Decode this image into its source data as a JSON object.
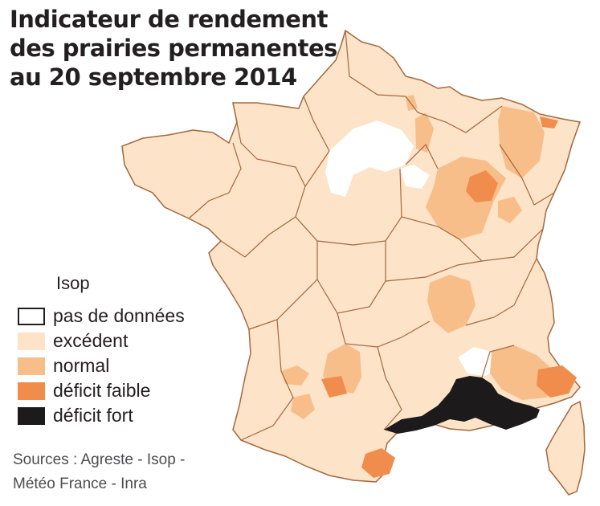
{
  "title": {
    "line1": "Indicateur de rendement",
    "line2": "des prairies permanentes",
    "line3": "au 20 septembre 2014"
  },
  "legend": {
    "title": "Isop",
    "items": [
      {
        "label": "pas de données",
        "color": "#ffffff",
        "border": "#231f20"
      },
      {
        "label": "excédent",
        "color": "#fde3c8",
        "border": "#fde3c8"
      },
      {
        "label": "normal",
        "color": "#f7be8a",
        "border": "#f7be8a"
      },
      {
        "label": "déficit faible",
        "color": "#f08d4c",
        "border": "#f08d4c"
      },
      {
        "label": "déficit fort",
        "color": "#1c1a1a",
        "border": "#1c1a1a"
      }
    ]
  },
  "sources": {
    "line1": "Sources : Agreste - Isop -",
    "line2": "Météo France - Inra"
  },
  "colors": {
    "background": "#ffffff",
    "region_border": "#a3683f",
    "excedent": "#fde3c8",
    "normal": "#f7be8a",
    "deficit_faible": "#f08d4c",
    "deficit_fort": "#1c1a1a",
    "pas_de_donnees": "#ffffff"
  }
}
